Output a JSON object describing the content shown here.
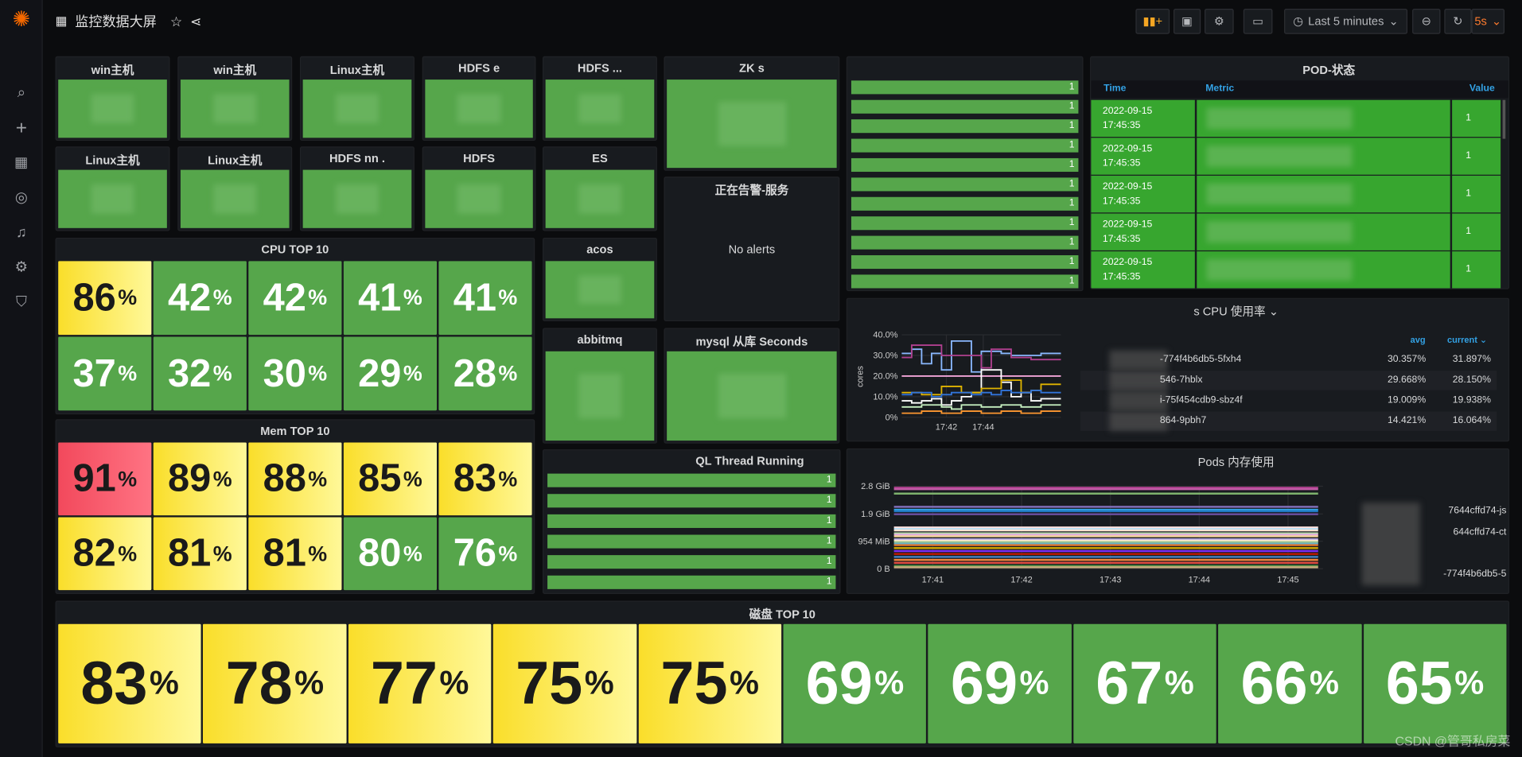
{
  "header": {
    "title": "监控数据大屏",
    "time_range": "Last 5 minutes",
    "refresh": "5s"
  },
  "sidebar": {
    "items": [
      "search",
      "create",
      "dashboards",
      "explore",
      "alerting",
      "configuration",
      "server-admin"
    ]
  },
  "stat_panels": [
    {
      "title": "win主机"
    },
    {
      "title": "win主机"
    },
    {
      "title": "Linux主机"
    },
    {
      "title": "HDFS          e"
    },
    {
      "title": "HDFS        ..."
    },
    {
      "title": "ZK                  s"
    },
    {
      "title": "Linux主机"
    },
    {
      "title": "Linux主机"
    },
    {
      "title": "HDFS nn       ."
    },
    {
      "title": "HDFS"
    },
    {
      "title": "ES"
    },
    {
      "title": "acos"
    },
    {
      "title": "abbitmq"
    },
    {
      "title": "mysql 从库 Seconds"
    }
  ],
  "alerts": {
    "title": "正在告警-服务",
    "message": "No alerts"
  },
  "bar_list": {
    "values": [
      "1",
      "1",
      "1",
      "1",
      "1",
      "1",
      "1",
      "1",
      "1",
      "1",
      "1",
      "1"
    ]
  },
  "thread_panel": {
    "title": "QL Thread Running",
    "values": [
      "1",
      "1",
      "1",
      "1",
      "1",
      "1"
    ]
  },
  "pod_status": {
    "title": "POD-状态",
    "columns": [
      "Time",
      "Metric",
      "Value"
    ],
    "rows": [
      {
        "date": "2022-09-15",
        "time": "17:45:35",
        "value": "1"
      },
      {
        "date": "2022-09-15",
        "time": "17:45:35",
        "value": "1"
      },
      {
        "date": "2022-09-15",
        "time": "17:45:35",
        "value": "1"
      },
      {
        "date": "2022-09-15",
        "time": "17:45:35",
        "value": "1"
      },
      {
        "date": "2022-09-15",
        "time": "17:45:35",
        "value": "1"
      }
    ]
  },
  "cpu_top": {
    "title": "CPU TOP 10",
    "unit": "%",
    "values": [
      86,
      42,
      42,
      41,
      41,
      37,
      32,
      30,
      29,
      28
    ],
    "levels": [
      "yellow",
      "green",
      "green",
      "green",
      "green",
      "green",
      "green",
      "green",
      "green",
      "green"
    ]
  },
  "mem_top": {
    "title": "Mem TOP 10",
    "unit": "%",
    "values": [
      91,
      89,
      88,
      85,
      83,
      82,
      81,
      81,
      80,
      76
    ],
    "levels": [
      "red",
      "yellow",
      "yellow",
      "yellow",
      "yellow",
      "yellow",
      "yellow",
      "yellow",
      "green",
      "green"
    ]
  },
  "disk_top": {
    "title": "磁盘 TOP 10",
    "unit": "%",
    "values": [
      83,
      78,
      77,
      75,
      75,
      69,
      69,
      67,
      66,
      65
    ],
    "levels": [
      "yellow",
      "yellow",
      "yellow",
      "yellow",
      "yellow",
      "green",
      "green",
      "green",
      "green",
      "green"
    ]
  },
  "colors": {
    "green": "#56a64b",
    "yellow": "#fade2a",
    "red": "#f2495c",
    "accent": "#33a2e5",
    "table_green": "#37a62f"
  },
  "chart_data": [
    {
      "type": "line",
      "title": "s CPU 使用率",
      "ylabel": "cores",
      "yticks": [
        "0%",
        "10.0%",
        "20.0%",
        "30.0%",
        "40.0%"
      ],
      "ylim": [
        0,
        40
      ],
      "xticks": [
        "17:42",
        "17:44"
      ],
      "legend_columns": [
        "avg",
        "current"
      ],
      "legend": [
        {
          "name": "-774f4b6db5-5fxh4",
          "avg": "30.357%",
          "current": "31.897%"
        },
        {
          "name": "546-7hblx",
          "avg": "29.668%",
          "current": "28.150%"
        },
        {
          "name": "i-75f454cdb9-sbz4f",
          "avg": "19.009%",
          "current": "19.938%"
        },
        {
          "name": "864-9pbh7",
          "avg": "14.421%",
          "current": "16.064%"
        }
      ],
      "series": [
        {
          "color": "#8ab8ff",
          "values": [
            31,
            33,
            26,
            31,
            23,
            37,
            37,
            22,
            32,
            32,
            31,
            30,
            30,
            30,
            31,
            31
          ]
        },
        {
          "color": "#b0408f",
          "values": [
            29,
            35,
            35,
            35,
            30,
            30,
            30,
            30,
            24,
            33,
            33,
            29,
            29,
            28,
            28,
            28
          ]
        },
        {
          "color": "#f2a5d8",
          "values": [
            20,
            20,
            20,
            20,
            20,
            20,
            20,
            20,
            20,
            20,
            20,
            20,
            20,
            20,
            20,
            20
          ]
        },
        {
          "color": "#ffffff",
          "values": [
            8,
            7,
            8,
            9,
            6,
            8,
            10,
            12,
            23,
            23,
            17,
            10,
            12,
            8,
            9,
            9
          ]
        },
        {
          "color": "#e0b400",
          "values": [
            12,
            12,
            11,
            11,
            15,
            15,
            12,
            12,
            14,
            14,
            18,
            18,
            12,
            13,
            16,
            16
          ]
        },
        {
          "color": "#3274d9",
          "values": [
            11,
            12,
            12,
            10,
            11,
            12,
            12,
            11,
            12,
            11,
            13,
            12,
            12,
            13,
            12,
            12
          ]
        },
        {
          "color": "#c8f2c2",
          "values": [
            5,
            5,
            6,
            6,
            5,
            4,
            6,
            6,
            5,
            5,
            6,
            6,
            5,
            5,
            6,
            6
          ]
        },
        {
          "color": "#ff9830",
          "values": [
            2,
            2,
            3,
            3,
            2,
            2,
            3,
            3,
            2,
            2,
            3,
            3,
            2,
            2,
            3,
            3
          ]
        }
      ]
    },
    {
      "type": "line",
      "title": "Pods 内存使用",
      "yticks": [
        "0 B",
        "954 MiB",
        "1.9 GiB",
        "2.8 GiB"
      ],
      "xticks": [
        "17:41",
        "17:42",
        "17:43",
        "17:44",
        "17:45"
      ],
      "legend": [
        {
          "name": "7644cffd74-js"
        },
        {
          "name": "644cffd74-ct"
        },
        {
          "name": "-774f4b6db5-5"
        }
      ],
      "series_levels_gib": [
        2.75,
        2.7,
        2.55,
        2.1,
        2.0,
        1.95,
        1.85,
        1.4,
        1.35,
        1.3,
        1.2,
        1.15,
        1.1,
        1.0,
        0.95,
        0.9,
        0.85,
        0.8,
        0.7,
        0.6,
        0.5,
        0.4,
        0.3,
        0.2,
        0.1,
        0.05
      ],
      "series_colors": [
        "#b0408f",
        "#c15ca6",
        "#7eb26d",
        "#806eb7",
        "#33a2e5",
        "#1f78c1",
        "#6d4fa0",
        "#fce2de",
        "#badff4",
        "#f9e2d2",
        "#b7dbab",
        "#e5a8e2",
        "#f4d598",
        "#aea2e0",
        "#fceaca",
        "#9ac48a",
        "#64b0c8",
        "#e0752d",
        "#cca300",
        "#7c2ef1",
        "#bf1b00",
        "#447ebc",
        "#ef843c",
        "#e24d42",
        "#508642",
        "#ccb17f"
      ]
    }
  ],
  "watermark": "CSDN @管哥私房菜"
}
